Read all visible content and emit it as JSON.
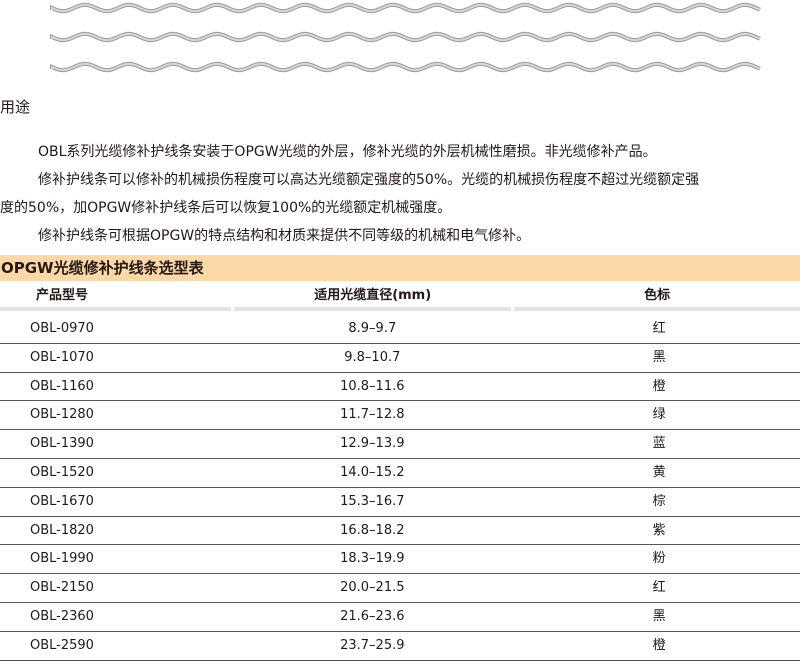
{
  "section_title": "用途",
  "paragraphs": [
    "OBL系列光缆修补护线条安装于OPGW光缆的外层，修补光缆的外层机械性磨损。非光缆修补产品。",
    "修补护线条可以修补的机械损伤程度可以高达光缆额定强度的50%。光缆的机械损伤程度不超过光缆额定强",
    "度的50%，加OPGW修补护线条后可以恢复100%的光缆额定机械强度。",
    "修补护线条可根据OPGW的特点结构和材质来提供不同等级的机械和电气修补。"
  ],
  "table": {
    "title": "OPGW光缆修补护线条选型表",
    "title_bg": "#fbd8a5",
    "headers": [
      "产品型号",
      "适用光缆直径(mm)",
      "色标"
    ],
    "rows": [
      [
        "OBL-0970",
        "8.9–9.7",
        "红"
      ],
      [
        "OBL-1070",
        "9.8–10.7",
        "黑"
      ],
      [
        "OBL-1160",
        "10.8–11.6",
        "橙"
      ],
      [
        "OBL-1280",
        "11.7–12.8",
        "绿"
      ],
      [
        "OBL-1390",
        "12.9–13.9",
        "蓝"
      ],
      [
        "OBL-1520",
        "14.0–15.2",
        "黄"
      ],
      [
        "OBL-1670",
        "15.3–16.7",
        "棕"
      ],
      [
        "OBL-1820",
        "16.8–18.2",
        "紫"
      ],
      [
        "OBL-1990",
        "18.3–19.9",
        "粉"
      ],
      [
        "OBL-2150",
        "20.0–21.5",
        "红"
      ],
      [
        "OBL-2360",
        "21.6–23.6",
        "黑"
      ],
      [
        "OBL-2590",
        "23.7–25.9",
        "橙"
      ]
    ]
  }
}
